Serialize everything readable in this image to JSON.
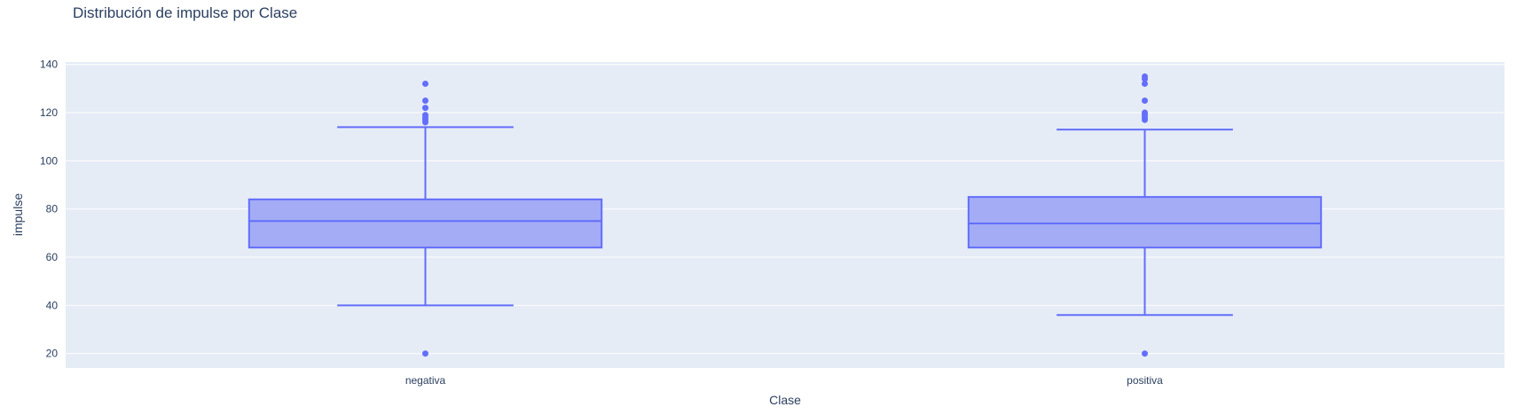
{
  "chart_data": {
    "type": "box",
    "title": "Distribución de impulse por Clase",
    "xlabel": "Clase",
    "ylabel": "impulse",
    "categories": [
      "negativa",
      "positiva"
    ],
    "yticks": [
      20,
      40,
      60,
      80,
      100,
      120,
      140
    ],
    "ylim": [
      14,
      141
    ],
    "grid": true,
    "legend": "none",
    "colors": {
      "plot_bg": "#e5ecf6",
      "grid": "#ffffff",
      "box_fill": "#a3acf5",
      "box_line": "#636efa",
      "text": "#2a3f5f"
    },
    "boxes": [
      {
        "category": "negativa",
        "lower_fence": 40,
        "q1": 64,
        "median": 75,
        "q3": 84,
        "upper_fence": 114,
        "outliers": [
          20,
          116,
          117,
          118,
          119,
          122,
          125,
          132
        ]
      },
      {
        "category": "positiva",
        "lower_fence": 36,
        "q1": 64,
        "median": 74,
        "q3": 85,
        "upper_fence": 113,
        "outliers": [
          20,
          117,
          118,
          119,
          120,
          125,
          132,
          134,
          135
        ]
      }
    ]
  }
}
